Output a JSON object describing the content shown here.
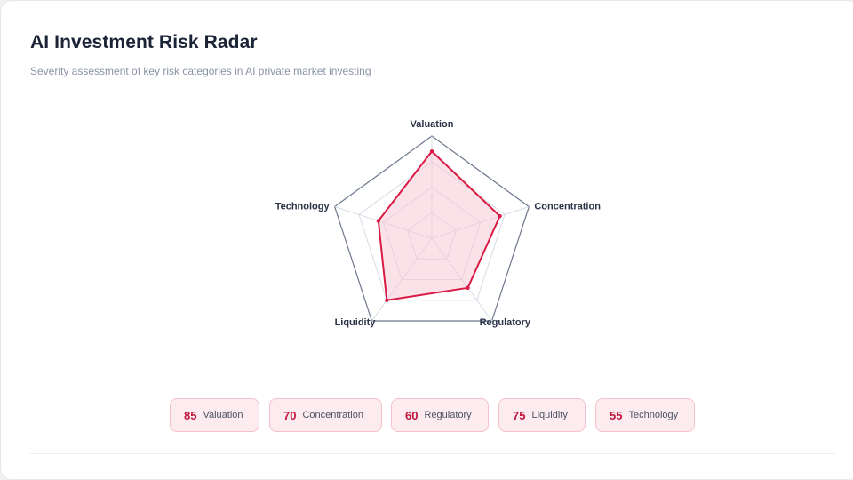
{
  "header": {
    "title": "AI Investment Risk Radar",
    "subtitle": "Severity assessment of key risk categories in AI private market investing"
  },
  "chart_data": {
    "type": "radar",
    "title": "AI Investment Risk Radar",
    "subtitle": "Severity assessment of key risk categories in AI private market investing",
    "categories": [
      "Valuation",
      "Concentration",
      "Regulatory",
      "Liquidity",
      "Technology"
    ],
    "values": [
      85,
      70,
      60,
      75,
      55
    ],
    "range": [
      0,
      100
    ],
    "grid_rings": 4,
    "colors": {
      "series_stroke": "#d91b46",
      "series_fill": "#f7c6d2",
      "outer_ring": "#6b778c",
      "grid": "#d8dce6"
    }
  },
  "legend": {
    "items": [
      {
        "value": "85",
        "label": "Valuation"
      },
      {
        "value": "70",
        "label": "Concentration"
      },
      {
        "value": "60",
        "label": "Regulatory"
      },
      {
        "value": "75",
        "label": "Liquidity"
      },
      {
        "value": "55",
        "label": "Technology"
      }
    ]
  }
}
